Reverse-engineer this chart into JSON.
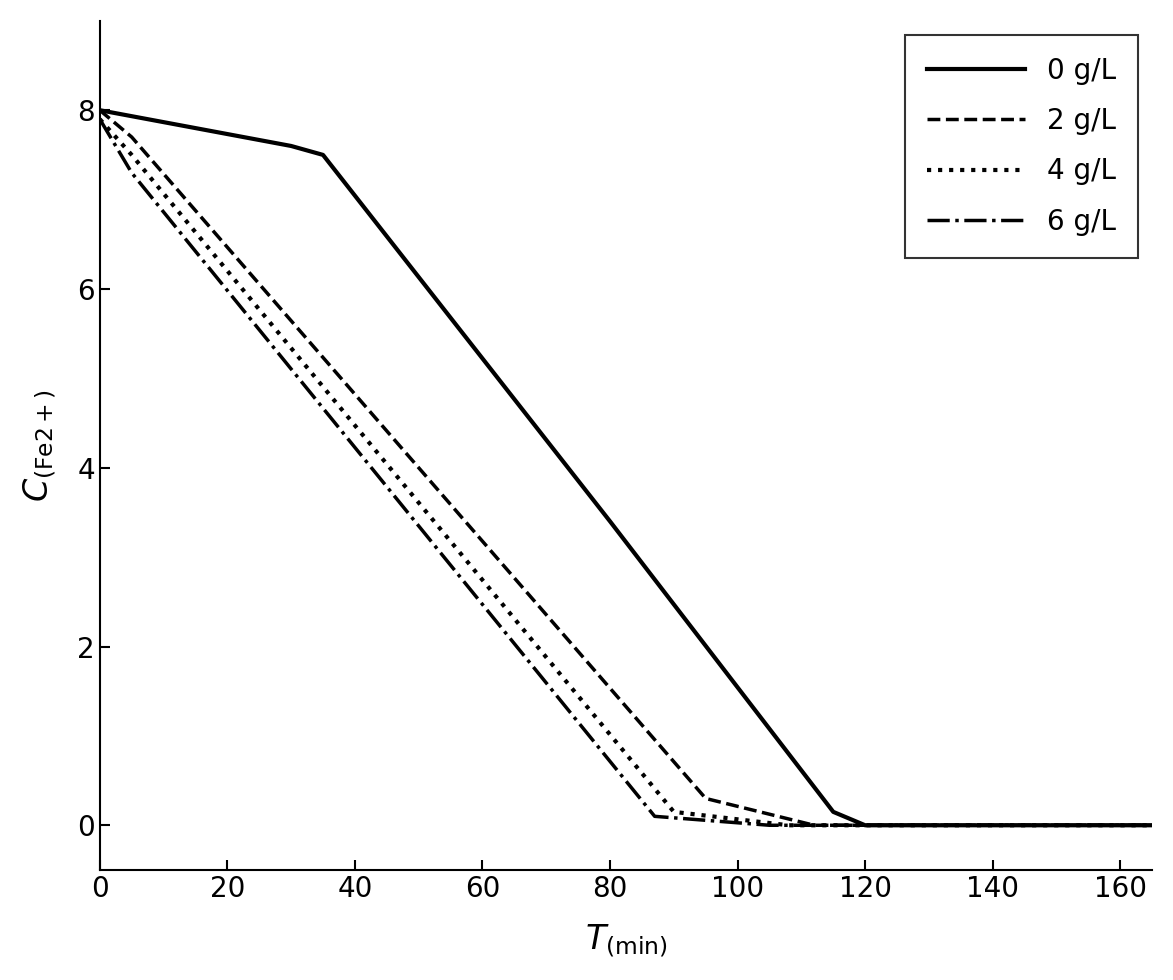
{
  "series": [
    {
      "label": "0 g/L",
      "linestyle": "solid",
      "linewidth": 3.0,
      "x": [
        0,
        30,
        35,
        80,
        115,
        120,
        165
      ],
      "y": [
        8.0,
        7.6,
        7.5,
        3.4,
        0.15,
        0.0,
        0.0
      ]
    },
    {
      "label": "2 g/L",
      "linestyle": "dashed",
      "linewidth": 2.5,
      "x": [
        0,
        5,
        95,
        112,
        165
      ],
      "y": [
        8.0,
        7.7,
        0.3,
        0.0,
        0.0
      ]
    },
    {
      "label": "4 g/L",
      "linestyle": "dotted",
      "linewidth": 3.0,
      "x": [
        0,
        5,
        90,
        108,
        165
      ],
      "y": [
        7.9,
        7.5,
        0.15,
        0.0,
        0.0
      ]
    },
    {
      "label": "6 g/L",
      "linestyle": "dashdot",
      "linewidth": 2.5,
      "x": [
        0,
        5,
        87,
        105,
        165
      ],
      "y": [
        7.9,
        7.3,
        0.1,
        0.0,
        0.0
      ]
    }
  ],
  "xlabel": "$T_{\\mathrm{(min)}}$",
  "ylabel": "$C_{\\mathrm{(Fe2+)}}$",
  "xlim": [
    0,
    165
  ],
  "ylim": [
    -0.5,
    9.0
  ],
  "xticks": [
    0,
    20,
    40,
    60,
    80,
    100,
    120,
    140,
    160
  ],
  "yticks": [
    0,
    2,
    4,
    6,
    8
  ],
  "legend_loc": "upper right",
  "color": "black",
  "background": "white"
}
